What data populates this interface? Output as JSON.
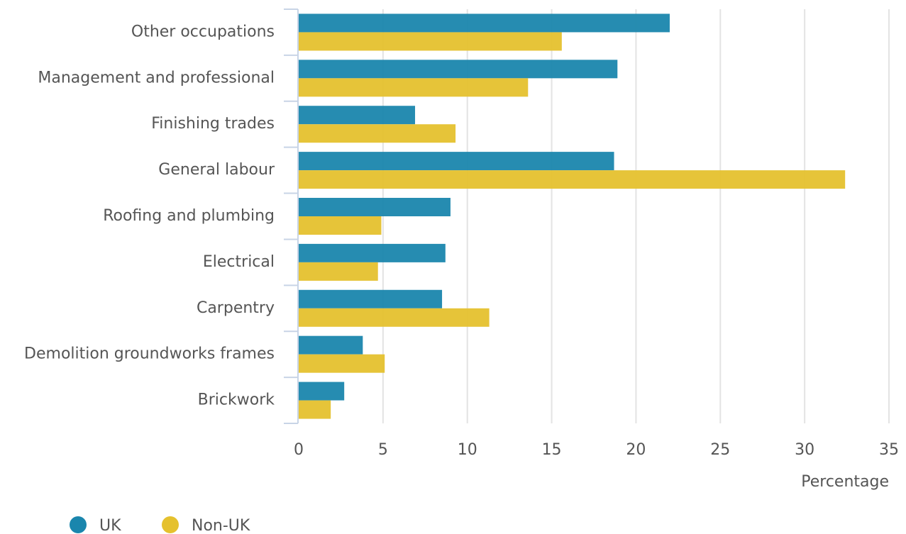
{
  "chart_data": {
    "type": "bar",
    "orientation": "horizontal",
    "x_label": "Percentage",
    "categories": [
      "Other occupations",
      "Management and professional",
      "Finishing trades",
      "General labour",
      "Roofing and plumbing",
      "Electrical",
      "Carpentry",
      "Demolition groundworks frames",
      "Brickwork"
    ],
    "series": [
      {
        "name": "UK",
        "color": "#1a86ad",
        "values": [
          22.0,
          18.9,
          6.9,
          18.7,
          9.0,
          8.7,
          8.5,
          3.8,
          2.7
        ]
      },
      {
        "name": "Non-UK",
        "color": "#e5c12e",
        "values": [
          15.6,
          13.6,
          9.3,
          32.4,
          4.9,
          4.7,
          11.3,
          5.1,
          1.9
        ]
      }
    ],
    "xlim": [
      0,
      35
    ],
    "xticks": [
      0,
      5,
      10,
      15,
      20,
      25,
      30,
      35
    ],
    "grid": true,
    "legend": "bottom-left"
  }
}
